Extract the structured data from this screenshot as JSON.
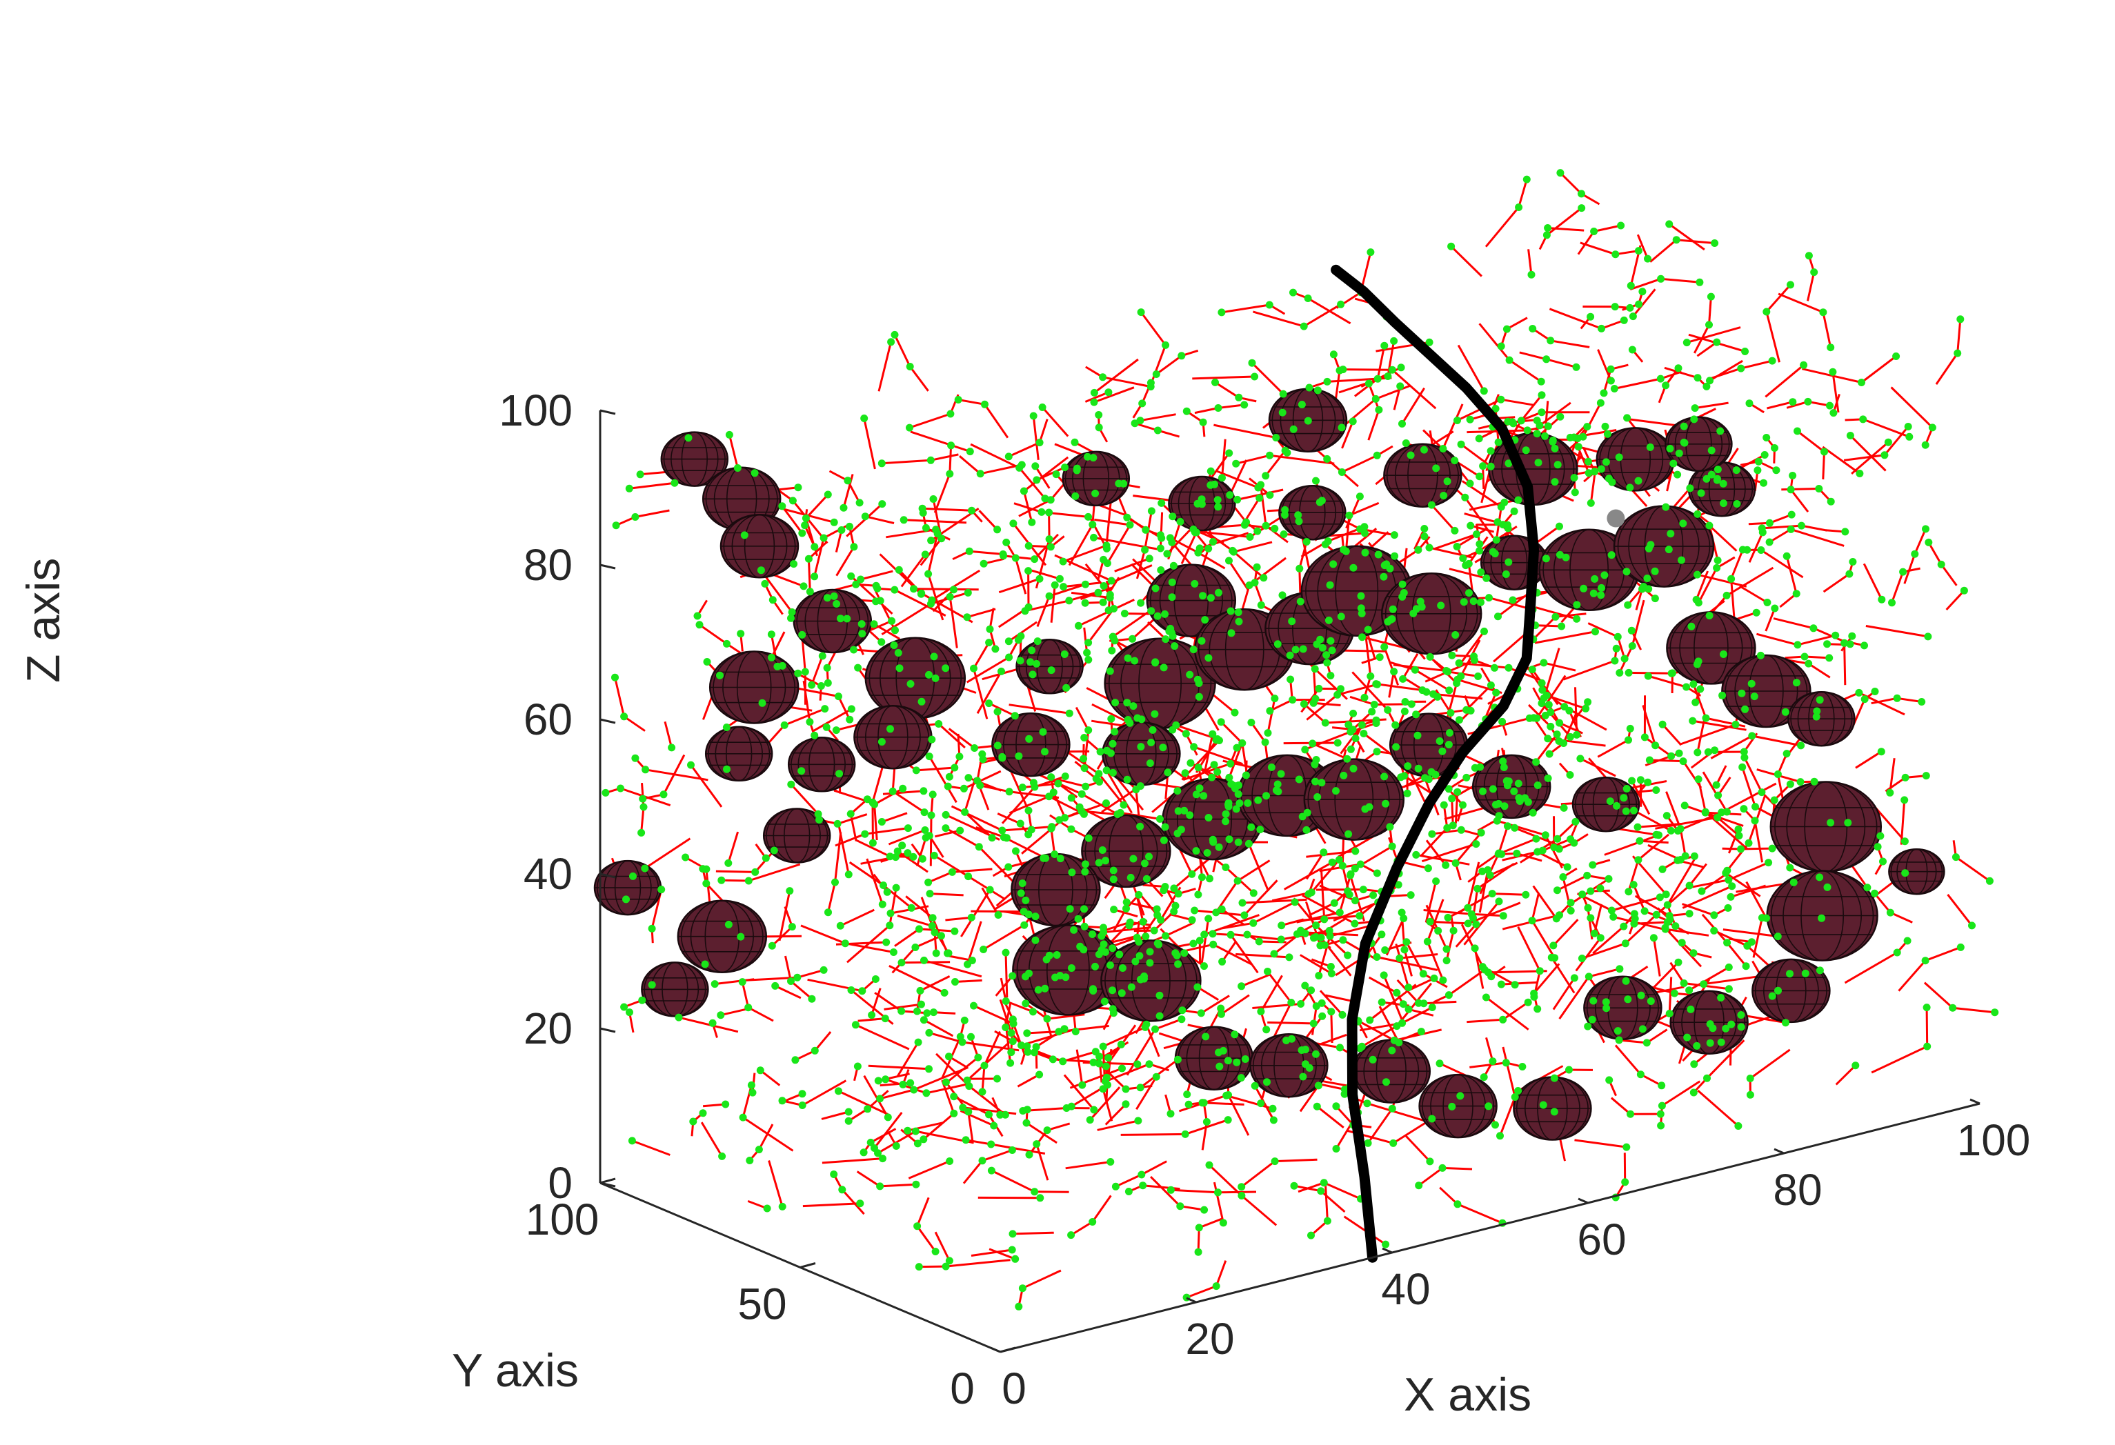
{
  "chart_data": {
    "type": "scatter3d",
    "description_free": true,
    "xlabel": "X axis",
    "ylabel": "Y axis",
    "zlabel": "Z axis",
    "xlim": [
      0,
      100
    ],
    "ylim": [
      0,
      100
    ],
    "zlim": [
      0,
      100
    ],
    "x_ticks": [
      "0",
      "20",
      "40",
      "60",
      "80",
      "100"
    ],
    "y_ticks": [
      "0",
      "50",
      "100"
    ],
    "z_ticks": [
      "0",
      "20",
      "40",
      "60",
      "80",
      "100"
    ],
    "grid": false,
    "colors": {
      "branch_line": "#ff0000",
      "node_point": "#19e619",
      "sphere_fill": "#5c1f2f",
      "sphere_mesh": "#1a0a0e",
      "trunk_line": "#000000",
      "axis": "#262626",
      "marker": "#888888"
    },
    "trunk": [
      [
        38,
        0,
        0
      ],
      [
        38,
        2,
        10
      ],
      [
        38,
        5,
        20
      ],
      [
        40,
        10,
        28
      ],
      [
        43,
        14,
        36
      ],
      [
        47,
        16,
        44
      ],
      [
        52,
        20,
        50
      ],
      [
        57,
        24,
        54
      ],
      [
        62,
        26,
        58
      ],
      [
        66,
        30,
        62
      ],
      [
        68,
        34,
        67
      ],
      [
        70,
        38,
        73
      ],
      [
        71,
        42,
        80
      ],
      [
        70,
        46,
        87
      ],
      [
        68,
        50,
        92
      ],
      [
        66,
        54,
        96
      ],
      [
        64,
        58,
        100
      ],
      [
        62,
        61,
        104
      ],
      [
        60,
        63,
        107
      ]
    ],
    "spheres": [
      [
        8,
        96,
        92,
        3
      ],
      [
        12,
        94,
        86,
        3.5
      ],
      [
        13,
        92,
        80,
        3.5
      ],
      [
        18,
        86,
        70,
        3.5
      ],
      [
        24,
        80,
        62,
        4.5
      ],
      [
        32,
        66,
        64,
        3
      ],
      [
        40,
        58,
        61,
        5
      ],
      [
        47,
        54,
        64,
        4.5
      ],
      [
        52,
        50,
        66,
        4
      ],
      [
        56,
        48,
        70,
        5
      ],
      [
        62,
        44,
        66,
        4.5
      ],
      [
        68,
        38,
        72,
        3
      ],
      [
        74,
        34,
        70,
        4.5
      ],
      [
        80,
        30,
        72,
        4.5
      ],
      [
        84,
        28,
        58,
        4
      ],
      [
        88,
        24,
        52,
        4
      ],
      [
        92,
        20,
        48,
        3
      ],
      [
        90,
        14,
        36,
        5
      ],
      [
        88,
        10,
        26,
        5
      ],
      [
        84,
        8,
        18,
        3.5
      ],
      [
        96,
        6,
        30,
        2.5
      ],
      [
        74,
        4,
        18,
        3.5
      ],
      [
        66,
        6,
        22,
        3.5
      ],
      [
        58,
        4,
        12,
        3.5
      ],
      [
        50,
        8,
        14,
        3.5
      ],
      [
        44,
        10,
        20,
        3.5
      ],
      [
        36,
        16,
        22,
        3.5
      ],
      [
        30,
        20,
        24,
        3.5
      ],
      [
        26,
        26,
        34,
        4.5
      ],
      [
        20,
        32,
        36,
        5
      ],
      [
        22,
        40,
        44,
        4
      ],
      [
        30,
        42,
        46,
        4
      ],
      [
        38,
        40,
        48,
        4.5
      ],
      [
        44,
        36,
        50,
        4.5
      ],
      [
        50,
        34,
        48,
        4.5
      ],
      [
        56,
        30,
        54,
        3.5
      ],
      [
        62,
        24,
        48,
        3.5
      ],
      [
        70,
        20,
        44,
        3
      ],
      [
        34,
        48,
        56,
        3.5
      ],
      [
        26,
        56,
        58,
        3.5
      ],
      [
        16,
        66,
        60,
        3.5
      ],
      [
        12,
        74,
        56,
        3
      ],
      [
        6,
        80,
        58,
        3
      ],
      [
        10,
        86,
        64,
        4
      ],
      [
        16,
        90,
        42,
        3
      ],
      [
        10,
        94,
        30,
        4
      ],
      [
        6,
        96,
        24,
        3
      ],
      [
        2,
        98,
        38,
        3
      ],
      [
        44,
        60,
        70,
        4
      ],
      [
        58,
        64,
        76,
        3
      ],
      [
        66,
        56,
        80,
        3.5
      ],
      [
        74,
        48,
        80,
        4
      ],
      [
        82,
        42,
        80,
        3.5
      ],
      [
        86,
        36,
        82,
        3
      ],
      [
        90,
        40,
        74,
        3
      ],
      [
        60,
        70,
        86,
        3.5
      ],
      [
        50,
        72,
        78,
        3
      ],
      [
        40,
        74,
        84,
        3
      ]
    ],
    "nodes_count_shown": false,
    "marker_point": [
      80,
      42,
      73
    ]
  }
}
